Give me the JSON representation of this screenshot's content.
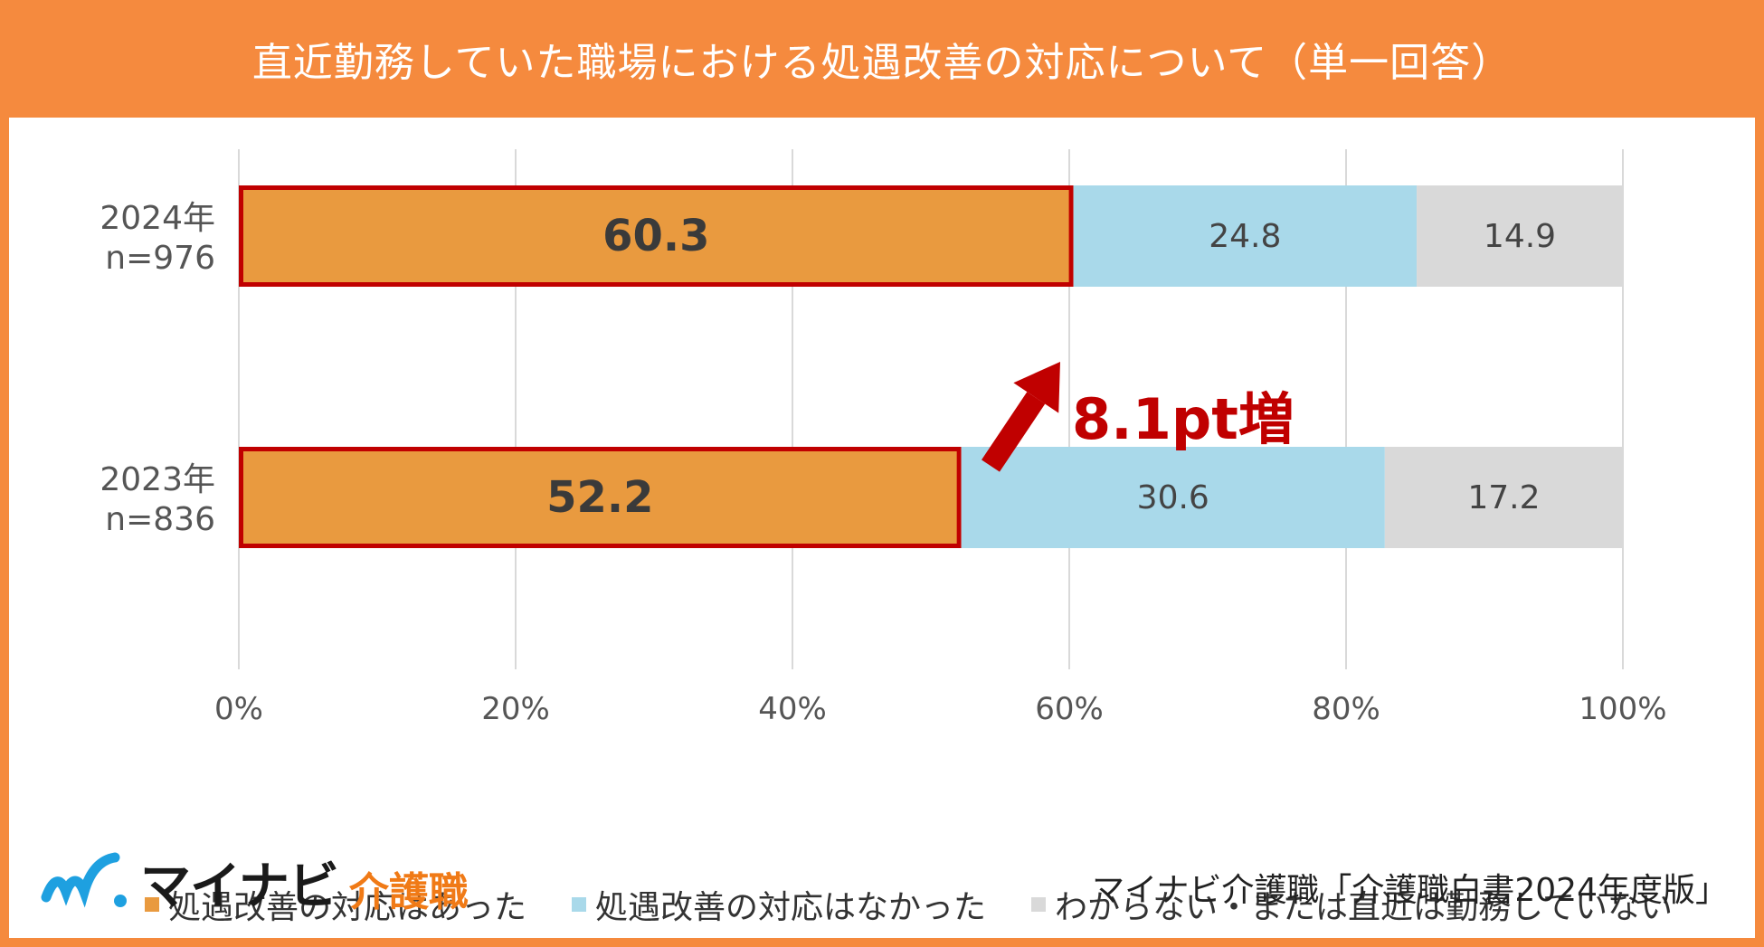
{
  "header": {
    "title": "直近勤務していた職場における処遇改善の対応について（単一回答）"
  },
  "chart_data": {
    "type": "bar",
    "orientation": "horizontal",
    "stacked": "percent",
    "categories": [
      {
        "year": "2024年",
        "n": "n=976"
      },
      {
        "year": "2023年",
        "n": "n=836"
      }
    ],
    "series": [
      {
        "name": "処遇改善の対応はあった",
        "color": "#E99A3F",
        "values": [
          60.3,
          52.2
        ],
        "labels": [
          "60.3",
          "52.2"
        ]
      },
      {
        "name": "処遇改善の対応はなかった",
        "color": "#A9D9EA",
        "values": [
          24.8,
          30.6
        ],
        "labels": [
          "24.8",
          "30.6"
        ]
      },
      {
        "name": "わからない・または直近は勤務していない",
        "color": "#D9D9D9",
        "values": [
          14.9,
          17.2
        ],
        "labels": [
          "14.9",
          "17.2"
        ]
      }
    ],
    "x_ticks": [
      "0%",
      "20%",
      "40%",
      "60%",
      "80%",
      "100%"
    ],
    "xlim": [
      0,
      100
    ],
    "grid": true,
    "legend": "bottom",
    "highlight_color": "#C00000",
    "annotation": {
      "text": "8.1pt増",
      "color": "#C00000"
    }
  },
  "logo": {
    "text": "マイナビ",
    "sub": "介護職",
    "mark_color": "#1EA0E0"
  },
  "source": "マイナビ介護職「介護職白書2024年度版」"
}
